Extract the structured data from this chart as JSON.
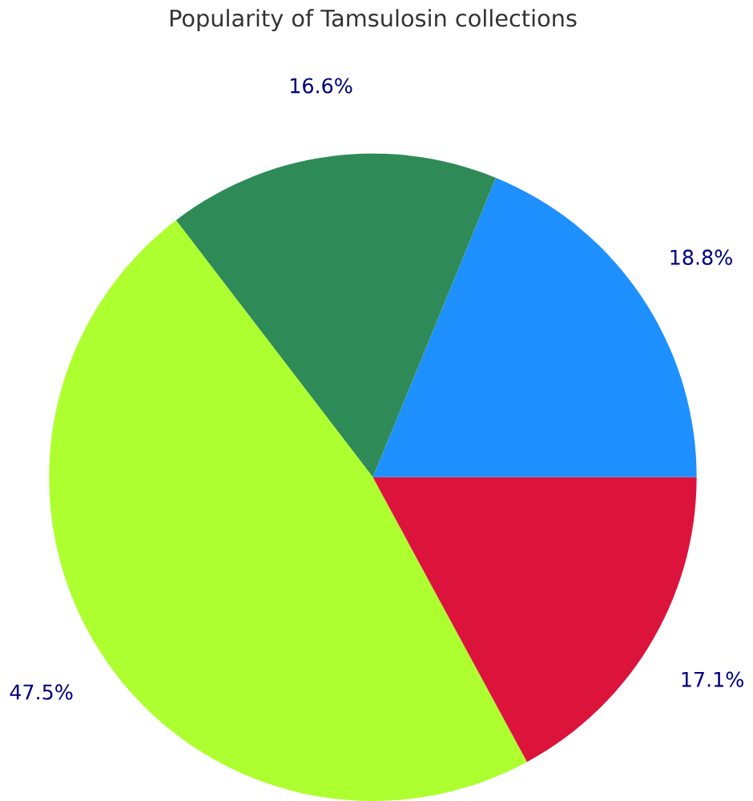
{
  "chart_data": {
    "type": "pie",
    "title": "Popularity of Tamsulosin collections",
    "categories": [
      null,
      null,
      null,
      null
    ],
    "values": [
      18.8,
      16.6,
      47.5,
      17.1
    ],
    "colors": [
      "#1e90ff",
      "#2e8b57",
      "#adff2f",
      "#dc143c"
    ],
    "value_labels": [
      "18.8%",
      "16.6%",
      "47.5%",
      "17.1%"
    ]
  }
}
